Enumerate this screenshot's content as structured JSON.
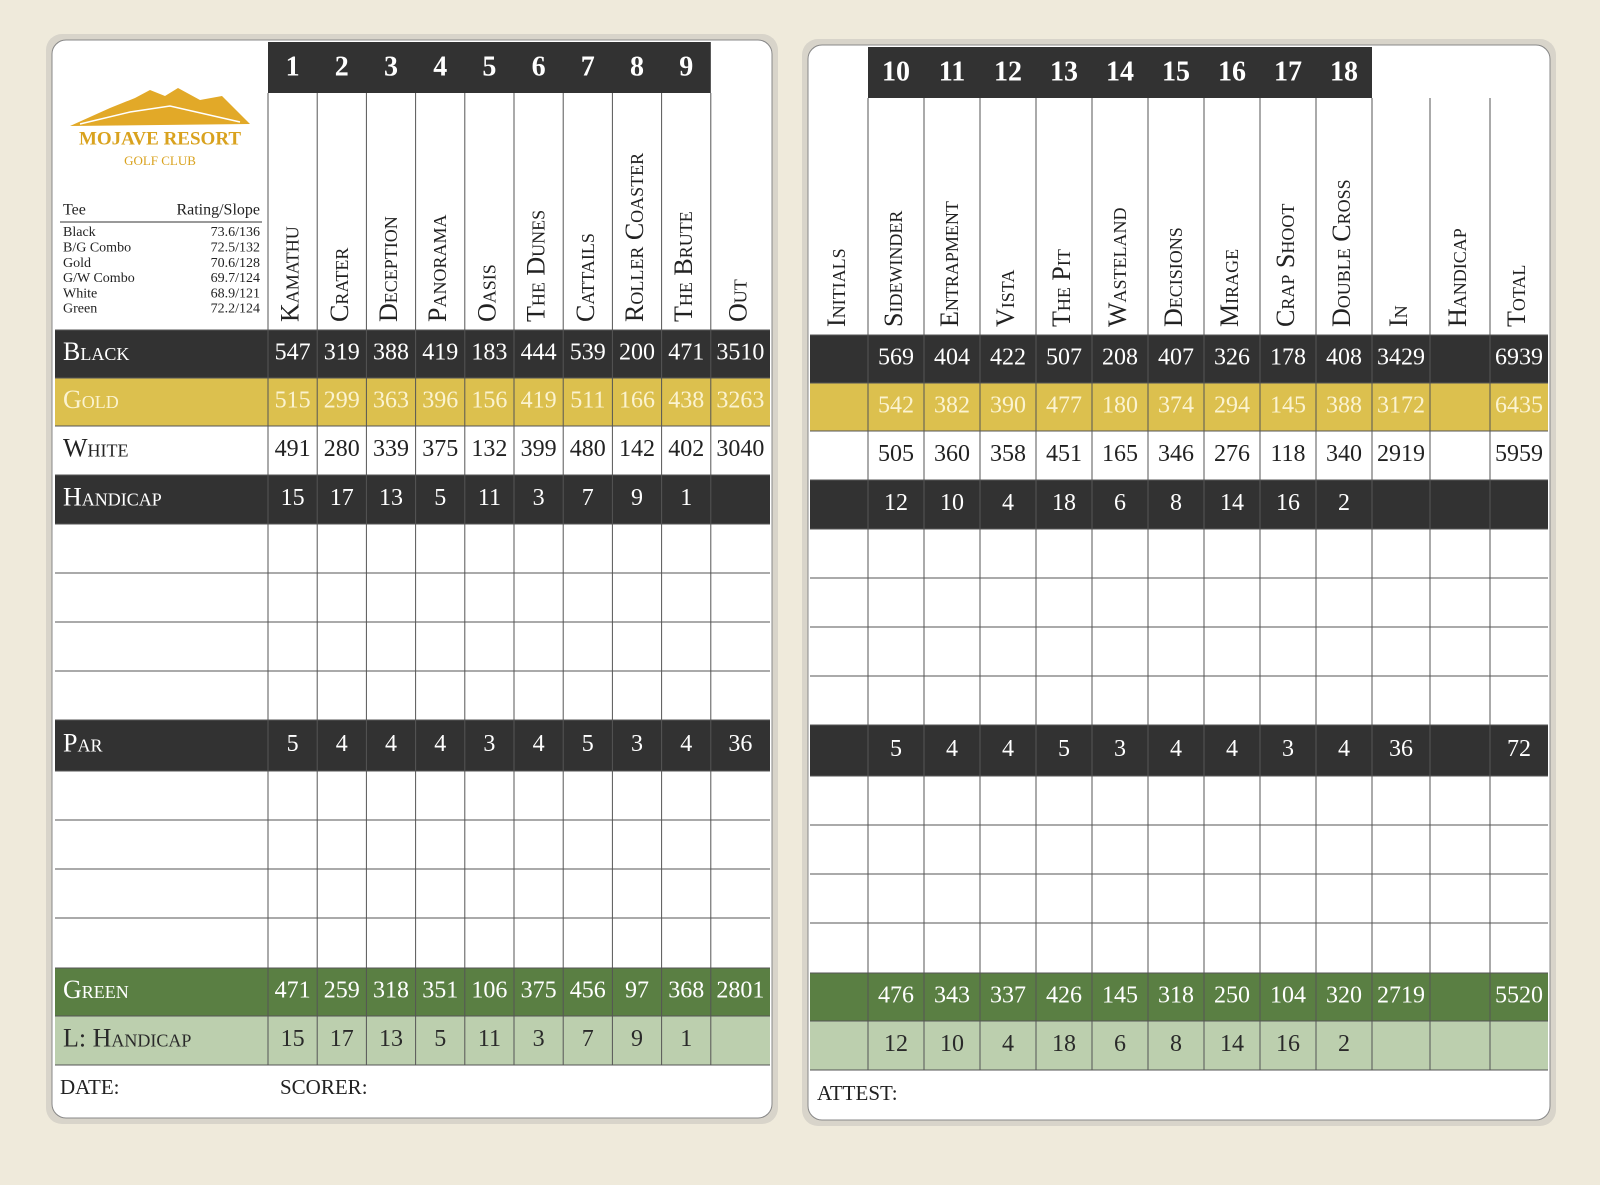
{
  "logo": {
    "name": "MOJAVE RESORT",
    "sub": "GOLF CLUB"
  },
  "tees": {
    "header": [
      "Tee",
      "Rating/Slope"
    ],
    "rows": [
      [
        "Black",
        "73.6/136"
      ],
      [
        "B/G Combo",
        "72.5/132"
      ],
      [
        "Gold",
        "70.6/128"
      ],
      [
        "G/W Combo",
        "69.7/124"
      ],
      [
        "White",
        "68.9/121"
      ],
      [
        "Green",
        "72.2/124"
      ]
    ]
  },
  "front": {
    "holes": [
      "1",
      "2",
      "3",
      "4",
      "5",
      "6",
      "7",
      "8",
      "9"
    ],
    "names": [
      "Kamathu",
      "Crater",
      "Deception",
      "Panorama",
      "Oasis",
      "The Dunes",
      "Cattails",
      "Roller Coaster",
      "The Brute",
      "Out"
    ],
    "rows": [
      {
        "label": "Black",
        "color": "#323232",
        "text_color": "#ffffff",
        "values": [
          547,
          319,
          388,
          419,
          183,
          444,
          539,
          200,
          471,
          3510
        ]
      },
      {
        "label": "Gold",
        "color": "#dcc04e",
        "text_color": "#fbf3d0",
        "values": [
          515,
          299,
          363,
          396,
          156,
          419,
          511,
          166,
          438,
          3263
        ]
      },
      {
        "label": "White",
        "color": "#ffffff",
        "text_color": "#222222",
        "values": [
          491,
          280,
          339,
          375,
          132,
          399,
          480,
          142,
          402,
          3040
        ]
      },
      {
        "label": "Handicap",
        "color": "#323232",
        "text_color": "#ffffff",
        "values": [
          15,
          17,
          13,
          5,
          11,
          3,
          7,
          9,
          1
        ]
      },
      {
        "label": "Par",
        "color": "#323232",
        "text_color": "#ffffff",
        "values": [
          5,
          4,
          4,
          4,
          3,
          4,
          5,
          3,
          4,
          36
        ]
      },
      {
        "label": "Green",
        "color": "#5a7f43",
        "text_color": "#ffffff",
        "values": [
          471,
          259,
          318,
          351,
          106,
          375,
          456,
          97,
          368,
          2801
        ]
      },
      {
        "label": "L: Handicap",
        "color": "#bccfae",
        "text_color": "#2a2a2a",
        "values": [
          15,
          17,
          13,
          5,
          11,
          3,
          7,
          9,
          1
        ]
      }
    ],
    "footer": [
      "DATE:",
      "SCORER:"
    ]
  },
  "back": {
    "initials": "Initials",
    "holes": [
      "10",
      "11",
      "12",
      "13",
      "14",
      "15",
      "16",
      "17",
      "18"
    ],
    "names": [
      "Sidewinder",
      "Entrapment",
      "Vista",
      "The Pit",
      "Wasteland",
      "Decisions",
      "Mirage",
      "Crap Shoot",
      "Double Cross",
      "In",
      "Handicap",
      "Total"
    ],
    "rows": [
      {
        "color": "#323232",
        "text_color": "#ffffff",
        "values": [
          569,
          404,
          422,
          507,
          208,
          407,
          326,
          178,
          408,
          3429,
          null,
          6939
        ]
      },
      {
        "color": "#dcc04e",
        "text_color": "#fbf3d0",
        "values": [
          542,
          382,
          390,
          477,
          180,
          374,
          294,
          145,
          388,
          3172,
          null,
          6435
        ]
      },
      {
        "color": "#ffffff",
        "text_color": "#222222",
        "values": [
          505,
          360,
          358,
          451,
          165,
          346,
          276,
          118,
          340,
          2919,
          null,
          5959
        ]
      },
      {
        "color": "#323232",
        "text_color": "#ffffff",
        "values": [
          12,
          10,
          4,
          18,
          6,
          8,
          14,
          16,
          2
        ]
      },
      {
        "color": "#323232",
        "text_color": "#ffffff",
        "values": [
          5,
          4,
          4,
          5,
          3,
          4,
          4,
          3,
          4,
          36,
          null,
          72
        ]
      },
      {
        "color": "#5a7f43",
        "text_color": "#ffffff",
        "values": [
          476,
          343,
          337,
          426,
          145,
          318,
          250,
          104,
          320,
          2719,
          null,
          5520
        ]
      },
      {
        "color": "#bccfae",
        "text_color": "#2a2a2a",
        "values": [
          12,
          10,
          4,
          18,
          6,
          8,
          14,
          16,
          2
        ]
      }
    ],
    "footer": [
      "ATTEST:"
    ]
  }
}
